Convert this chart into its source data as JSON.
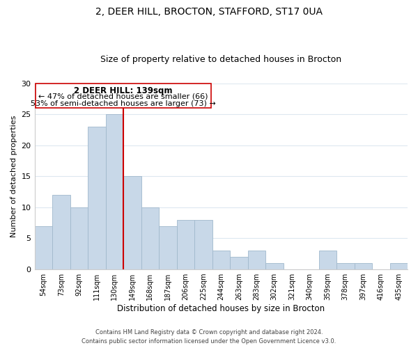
{
  "title1": "2, DEER HILL, BROCTON, STAFFORD, ST17 0UA",
  "title2": "Size of property relative to detached houses in Brocton",
  "xlabel": "Distribution of detached houses by size in Brocton",
  "ylabel": "Number of detached properties",
  "bar_labels": [
    "54sqm",
    "73sqm",
    "92sqm",
    "111sqm",
    "130sqm",
    "149sqm",
    "168sqm",
    "187sqm",
    "206sqm",
    "225sqm",
    "244sqm",
    "263sqm",
    "283sqm",
    "302sqm",
    "321sqm",
    "340sqm",
    "359sqm",
    "378sqm",
    "397sqm",
    "416sqm",
    "435sqm"
  ],
  "bar_values": [
    7,
    12,
    10,
    23,
    25,
    15,
    10,
    7,
    8,
    8,
    3,
    2,
    3,
    1,
    0,
    0,
    3,
    1,
    1,
    0,
    1
  ],
  "bar_color": "#c8d8e8",
  "bar_edge_color": "#a0b8cc",
  "vline_color": "#cc0000",
  "annotation_title": "2 DEER HILL: 139sqm",
  "annotation_line1": "← 47% of detached houses are smaller (66)",
  "annotation_line2": "53% of semi-detached houses are larger (73) →",
  "ylim": [
    0,
    30
  ],
  "yticks": [
    0,
    5,
    10,
    15,
    20,
    25,
    30
  ],
  "footer1": "Contains HM Land Registry data © Crown copyright and database right 2024.",
  "footer2": "Contains public sector information licensed under the Open Government Licence v3.0.",
  "bg_color": "#ffffff",
  "grid_color": "#dde8f0"
}
